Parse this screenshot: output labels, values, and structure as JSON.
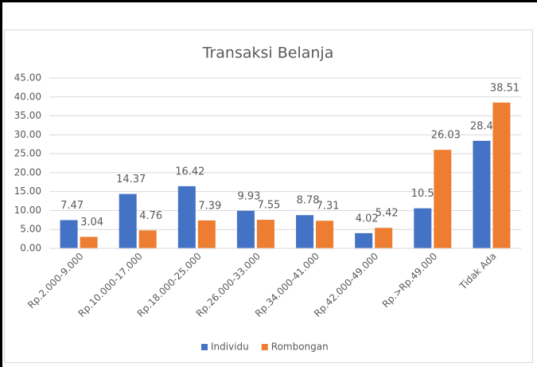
{
  "chart_data": {
    "type": "bar",
    "title": "Transaksi Belanja",
    "categories": [
      "Rp.2.000-9.000",
      "Rp.10.000-17.000",
      "Rp.18.000-25.000",
      "Rp.26.000-33.000",
      "Rp.34.000-41.000",
      "Rp.42.000-49.000",
      "Rp.>Rp.49.000",
      "Tidak Ada"
    ],
    "series": [
      {
        "name": "Individu",
        "color": "#4472c4",
        "values": [
          7.47,
          14.37,
          16.42,
          9.93,
          8.78,
          4.02,
          10.59,
          28.41
        ]
      },
      {
        "name": "Rombongan",
        "color": "#ed7d31",
        "values": [
          3.04,
          4.76,
          7.39,
          7.55,
          7.31,
          5.42,
          26.03,
          38.51
        ]
      }
    ],
    "ylim": [
      0,
      45
    ],
    "yticks": [
      {
        "value": 0,
        "label": "0.00"
      },
      {
        "value": 5,
        "label": "5.00"
      },
      {
        "value": 10,
        "label": "10.00"
      },
      {
        "value": 15,
        "label": "15.00"
      },
      {
        "value": 20,
        "label": "20.00"
      },
      {
        "value": 25,
        "label": "25.00"
      },
      {
        "value": 30,
        "label": "30.00"
      },
      {
        "value": 35,
        "label": "35.00"
      },
      {
        "value": 40,
        "label": "40.00"
      },
      {
        "value": 45,
        "label": "45.00"
      }
    ],
    "grid": true,
    "legend": "bottom"
  }
}
